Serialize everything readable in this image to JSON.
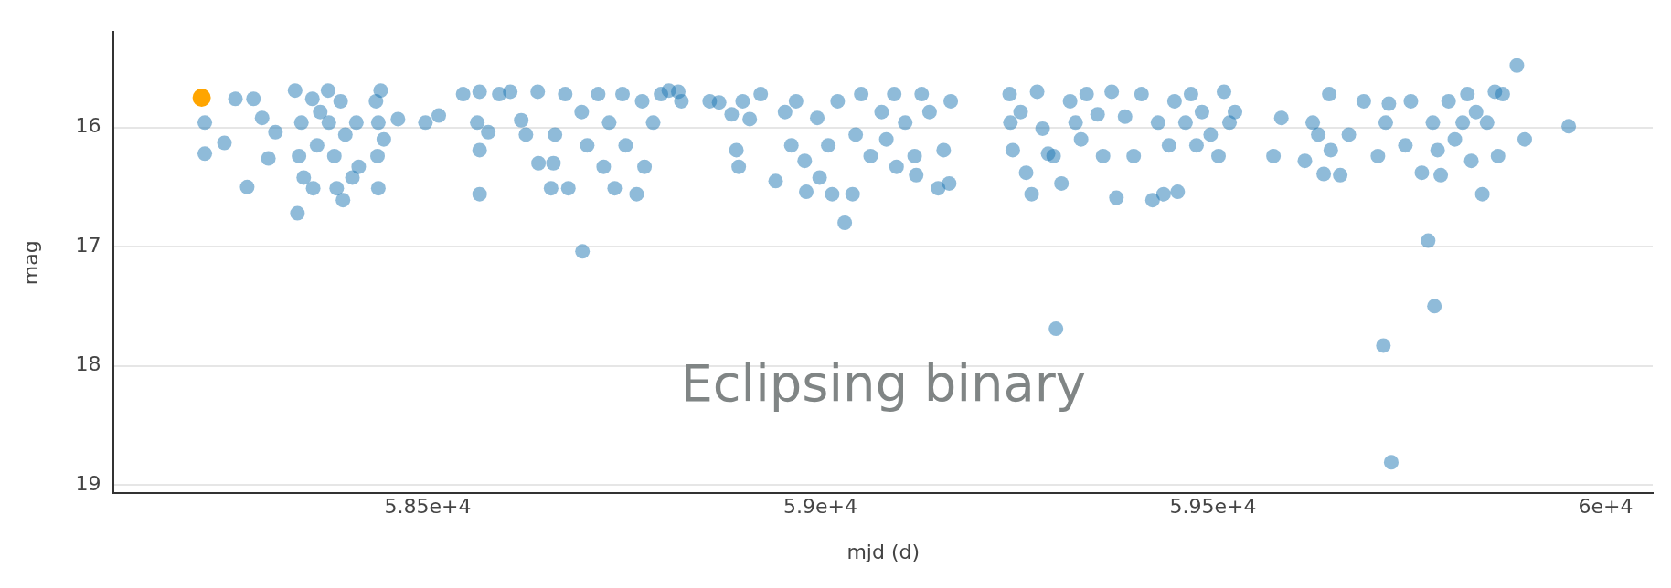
{
  "chart_data": {
    "type": "scatter",
    "xlabel": "mjd (d)",
    "ylabel": "mag",
    "xlim": [
      58100,
      60060
    ],
    "ylim": [
      19.07,
      15.2
    ],
    "xticks": [
      {
        "value": 58500,
        "label": "5.85e+4"
      },
      {
        "value": 59000,
        "label": "5.9e+4"
      },
      {
        "value": 59500,
        "label": "5.95e+4"
      },
      {
        "value": 60000,
        "label": "6e+4"
      }
    ],
    "yticks": [
      16,
      17,
      18,
      19
    ],
    "grid": "y",
    "legend": false,
    "marker": "circle",
    "annotations": [
      "Eclipsing binary"
    ],
    "series": [
      {
        "color": "#1f77b4",
        "x": [
          58216,
          58216,
          58241,
          58255,
          58270,
          58278,
          58289,
          58297,
          58306,
          58334,
          58331,
          58339,
          58336,
          58342,
          58353,
          58359,
          58363,
          58354,
          58373,
          58374,
          58381,
          58384,
          58389,
          58392,
          58395,
          58404,
          58409,
          58412,
          58434,
          58437,
          58436,
          58437,
          58440,
          58444,
          58462,
          58497,
          58514,
          58545,
          58566,
          58563,
          58566,
          58566,
          58577,
          58591,
          58605,
          58619,
          58625,
          58640,
          58641,
          58657,
          58660,
          58662,
          58679,
          58697,
          58675,
          58696,
          58703,
          58717,
          58724,
          58731,
          58738,
          58748,
          58752,
          58766,
          58773,
          58776,
          58787,
          58797,
          58807,
          58819,
          58823,
          58859,
          58871,
          58887,
          58893,
          58896,
          58901,
          58910,
          58924,
          58943,
          58955,
          58963,
          58969,
          58980,
          58982,
          58996,
          58999,
          59010,
          59015,
          59022,
          59031,
          59041,
          59045,
          59052,
          59064,
          59078,
          59084,
          59094,
          59097,
          59108,
          59120,
          59122,
          59129,
          59139,
          59150,
          59157,
          59164,
          59166,
          59241,
          59242,
          59245,
          59255,
          59262,
          59269,
          59276,
          59283,
          59290,
          59297,
          59300,
          59307,
          59318,
          59325,
          59332,
          59339,
          59353,
          59360,
          59371,
          59377,
          59388,
          59399,
          59409,
          59423,
          59430,
          59437,
          59444,
          59451,
          59455,
          59465,
          59472,
          59479,
          59486,
          59497,
          59507,
          59514,
          59521,
          59528,
          59577,
          59587,
          59617,
          59627,
          59634,
          59641,
          59648,
          59650,
          59662,
          59673,
          59692,
          59710,
          59717,
          59724,
          59727,
          59720,
          59745,
          59752,
          59766,
          59774,
          59780,
          59782,
          59786,
          59790,
          59800,
          59808,
          59818,
          59824,
          59829,
          59835,
          59843,
          59849,
          59859,
          59863,
          59869,
          59887,
          59897,
          59953
        ],
        "values": [
          15.96,
          16.22,
          16.13,
          15.76,
          16.5,
          15.76,
          15.92,
          16.26,
          16.04,
          16.72,
          15.69,
          15.96,
          16.24,
          16.42,
          15.76,
          16.15,
          15.87,
          16.51,
          15.69,
          15.96,
          16.24,
          16.51,
          15.78,
          16.61,
          16.06,
          16.42,
          15.96,
          16.33,
          15.78,
          15.96,
          16.24,
          16.51,
          15.69,
          16.1,
          15.93,
          15.96,
          15.9,
          15.72,
          15.7,
          15.96,
          16.19,
          16.56,
          16.04,
          15.72,
          15.7,
          15.94,
          16.06,
          15.7,
          16.3,
          16.51,
          16.3,
          16.06,
          16.51,
          17.04,
          15.72,
          15.87,
          16.15,
          15.72,
          16.33,
          15.96,
          16.51,
          15.72,
          16.15,
          16.56,
          15.78,
          16.33,
          15.96,
          15.72,
          15.69,
          15.7,
          15.78,
          15.78,
          15.79,
          15.89,
          16.19,
          16.33,
          15.78,
          15.93,
          15.72,
          16.45,
          15.87,
          16.15,
          15.78,
          16.28,
          16.54,
          15.92,
          16.42,
          16.15,
          16.56,
          15.78,
          16.8,
          16.56,
          16.06,
          15.72,
          16.24,
          15.87,
          16.1,
          15.72,
          16.33,
          15.96,
          16.24,
          16.4,
          15.72,
          15.87,
          16.51,
          16.19,
          16.47,
          15.78,
          15.72,
          15.96,
          16.19,
          15.87,
          16.38,
          16.56,
          15.7,
          16.01,
          16.22,
          16.24,
          17.69,
          16.47,
          15.78,
          15.96,
          16.1,
          15.72,
          15.89,
          16.24,
          15.7,
          16.59,
          15.91,
          16.24,
          15.72,
          16.61,
          15.96,
          16.56,
          16.15,
          15.78,
          16.54,
          15.96,
          15.72,
          16.15,
          15.87,
          16.06,
          16.24,
          15.7,
          15.96,
          15.87,
          16.24,
          15.92,
          16.28,
          15.96,
          16.06,
          16.39,
          15.72,
          16.19,
          16.4,
          16.06,
          15.78,
          16.24,
          17.83,
          15.8,
          18.81,
          15.96,
          16.15,
          15.78,
          16.38,
          16.95,
          15.96,
          17.5,
          16.19,
          16.4,
          15.78,
          16.1,
          15.96,
          15.72,
          16.28,
          15.87,
          16.56,
          15.96,
          15.7,
          16.24,
          15.72,
          15.48,
          16.1,
          15.99
        ]
      },
      {
        "color": "#ffa500",
        "x": [
          58212
        ],
        "values": [
          15.75
        ]
      }
    ]
  }
}
